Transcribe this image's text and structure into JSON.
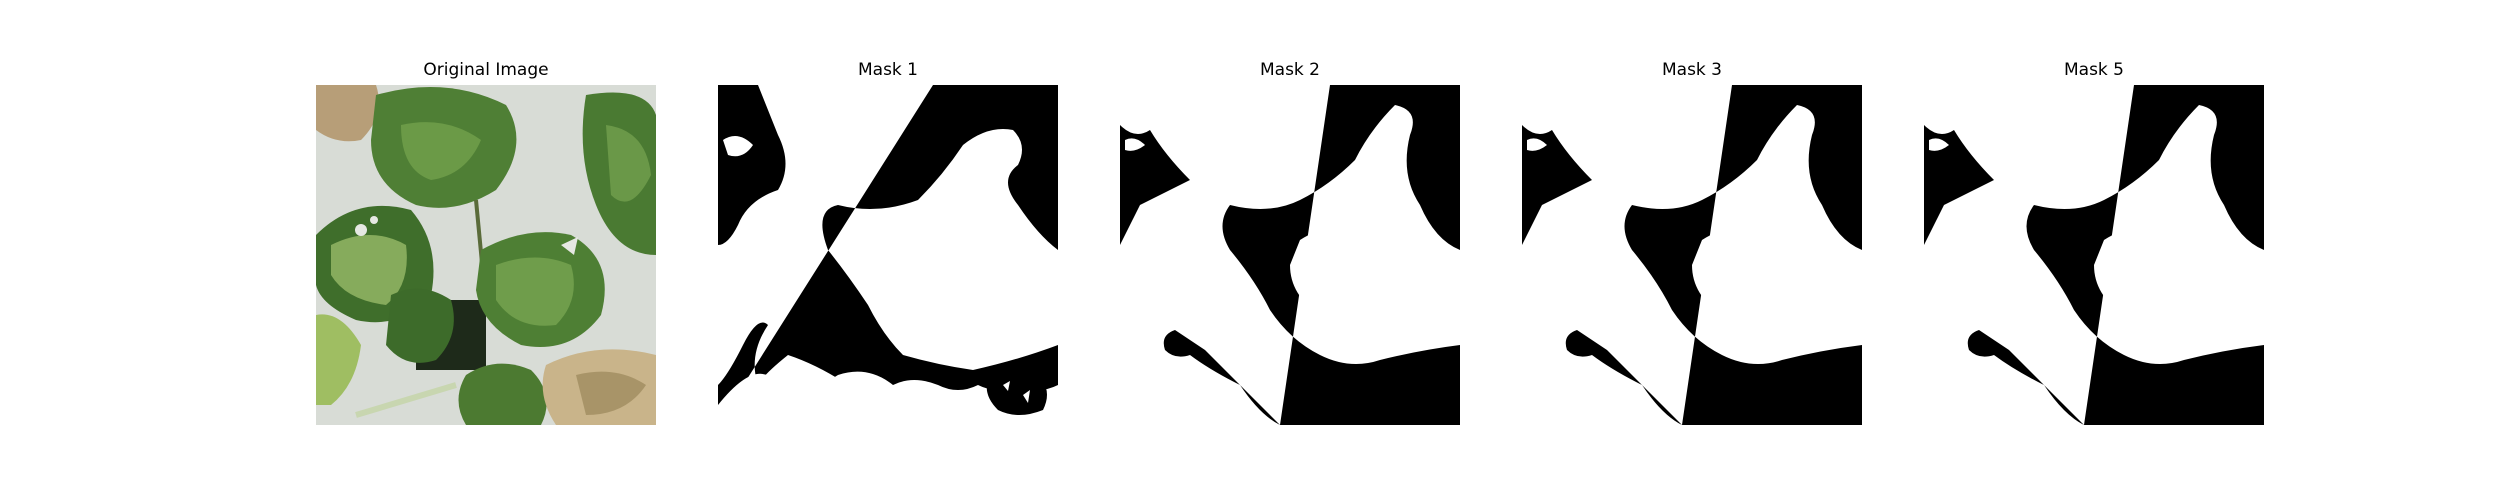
{
  "figure": {
    "panels": [
      {
        "title": "Original Image",
        "kind": "photo"
      },
      {
        "title": "Mask 1",
        "kind": "mask"
      },
      {
        "title": "Mask 2",
        "kind": "mask"
      },
      {
        "title": "Mask 3",
        "kind": "mask"
      },
      {
        "title": "Mask 5",
        "kind": "mask"
      }
    ]
  },
  "colors": {
    "mask_foreground": "#ffffff",
    "mask_background": "#000000",
    "leaf_dark": "#3e6b2c",
    "leaf_mid": "#5f8d3e",
    "leaf_light": "#9bbf6a",
    "background_tray": "#d8dcd6",
    "dry_leaf": "#c9b48a"
  }
}
